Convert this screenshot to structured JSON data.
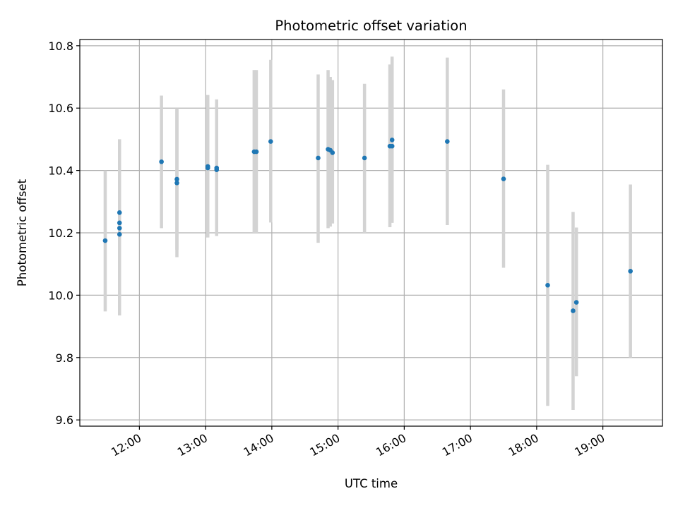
{
  "chart_data": {
    "type": "scatter",
    "title": "Photometric offset variation",
    "xlabel": "UTC time",
    "ylabel": "Photometric offset",
    "x_is_time": true,
    "xlim": [
      "11:06",
      "19:54"
    ],
    "ylim": [
      9.58,
      10.82
    ],
    "x_ticks": [
      "12:00",
      "13:00",
      "14:00",
      "15:00",
      "16:00",
      "17:00",
      "18:00",
      "19:00"
    ],
    "y_ticks": [
      9.6,
      9.8,
      10.0,
      10.2,
      10.4,
      10.6,
      10.8
    ],
    "y_tick_labels": [
      "9.6",
      "9.8",
      "10.0",
      "10.2",
      "10.4",
      "10.6",
      "10.8"
    ],
    "grid": true,
    "point_color": "#1f77b4",
    "errorbar_color": "#d3d3d3",
    "points": [
      {
        "x": "11:29",
        "y": 10.175,
        "err_low": 9.948,
        "err_high": 10.4
      },
      {
        "x": "11:42",
        "y": 10.265,
        "err_low": 10.035,
        "err_high": 10.5
      },
      {
        "x": "11:42",
        "y": 10.232,
        "err_low": 10.0,
        "err_high": 10.46
      },
      {
        "x": "11:42",
        "y": 10.215,
        "err_low": 9.985,
        "err_high": 10.44
      },
      {
        "x": "11:42",
        "y": 10.195,
        "err_low": 9.935,
        "err_high": 10.45
      },
      {
        "x": "12:20",
        "y": 10.428,
        "err_low": 10.215,
        "err_high": 10.64
      },
      {
        "x": "12:34",
        "y": 10.372,
        "err_low": 10.145,
        "err_high": 10.6
      },
      {
        "x": "12:34",
        "y": 10.36,
        "err_low": 10.122,
        "err_high": 10.595
      },
      {
        "x": "13:02",
        "y": 10.413,
        "err_low": 10.185,
        "err_high": 10.642
      },
      {
        "x": "13:02",
        "y": 10.408,
        "err_low": 10.19,
        "err_high": 10.63
      },
      {
        "x": "13:10",
        "y": 10.408,
        "err_low": 10.19,
        "err_high": 10.628
      },
      {
        "x": "13:10",
        "y": 10.402,
        "err_low": 10.19,
        "err_high": 10.618
      },
      {
        "x": "13:44",
        "y": 10.46,
        "err_low": 10.2,
        "err_high": 10.722
      },
      {
        "x": "13:46",
        "y": 10.46,
        "err_low": 10.2,
        "err_high": 10.722
      },
      {
        "x": "13:59",
        "y": 10.493,
        "err_low": 10.233,
        "err_high": 10.755
      },
      {
        "x": "14:42",
        "y": 10.44,
        "err_low": 10.168,
        "err_high": 10.708
      },
      {
        "x": "14:51",
        "y": 10.468,
        "err_low": 10.215,
        "err_high": 10.722
      },
      {
        "x": "14:53",
        "y": 10.465,
        "err_low": 10.22,
        "err_high": 10.7
      },
      {
        "x": "14:55",
        "y": 10.457,
        "err_low": 10.23,
        "err_high": 10.69
      },
      {
        "x": "15:24",
        "y": 10.44,
        "err_low": 10.2,
        "err_high": 10.678
      },
      {
        "x": "15:47",
        "y": 10.478,
        "err_low": 10.218,
        "err_high": 10.74
      },
      {
        "x": "15:49",
        "y": 10.478,
        "err_low": 10.232,
        "err_high": 10.765
      },
      {
        "x": "15:49",
        "y": 10.498,
        "err_low": 10.235,
        "err_high": 10.76
      },
      {
        "x": "16:39",
        "y": 10.493,
        "err_low": 10.225,
        "err_high": 10.762
      },
      {
        "x": "17:30",
        "y": 10.373,
        "err_low": 10.088,
        "err_high": 10.66
      },
      {
        "x": "18:10",
        "y": 10.032,
        "err_low": 9.645,
        "err_high": 10.418
      },
      {
        "x": "18:33",
        "y": 9.95,
        "err_low": 9.632,
        "err_high": 10.267
      },
      {
        "x": "18:36",
        "y": 9.977,
        "err_low": 9.74,
        "err_high": 10.217
      },
      {
        "x": "19:25",
        "y": 10.077,
        "err_low": 9.8,
        "err_high": 10.355
      }
    ]
  }
}
